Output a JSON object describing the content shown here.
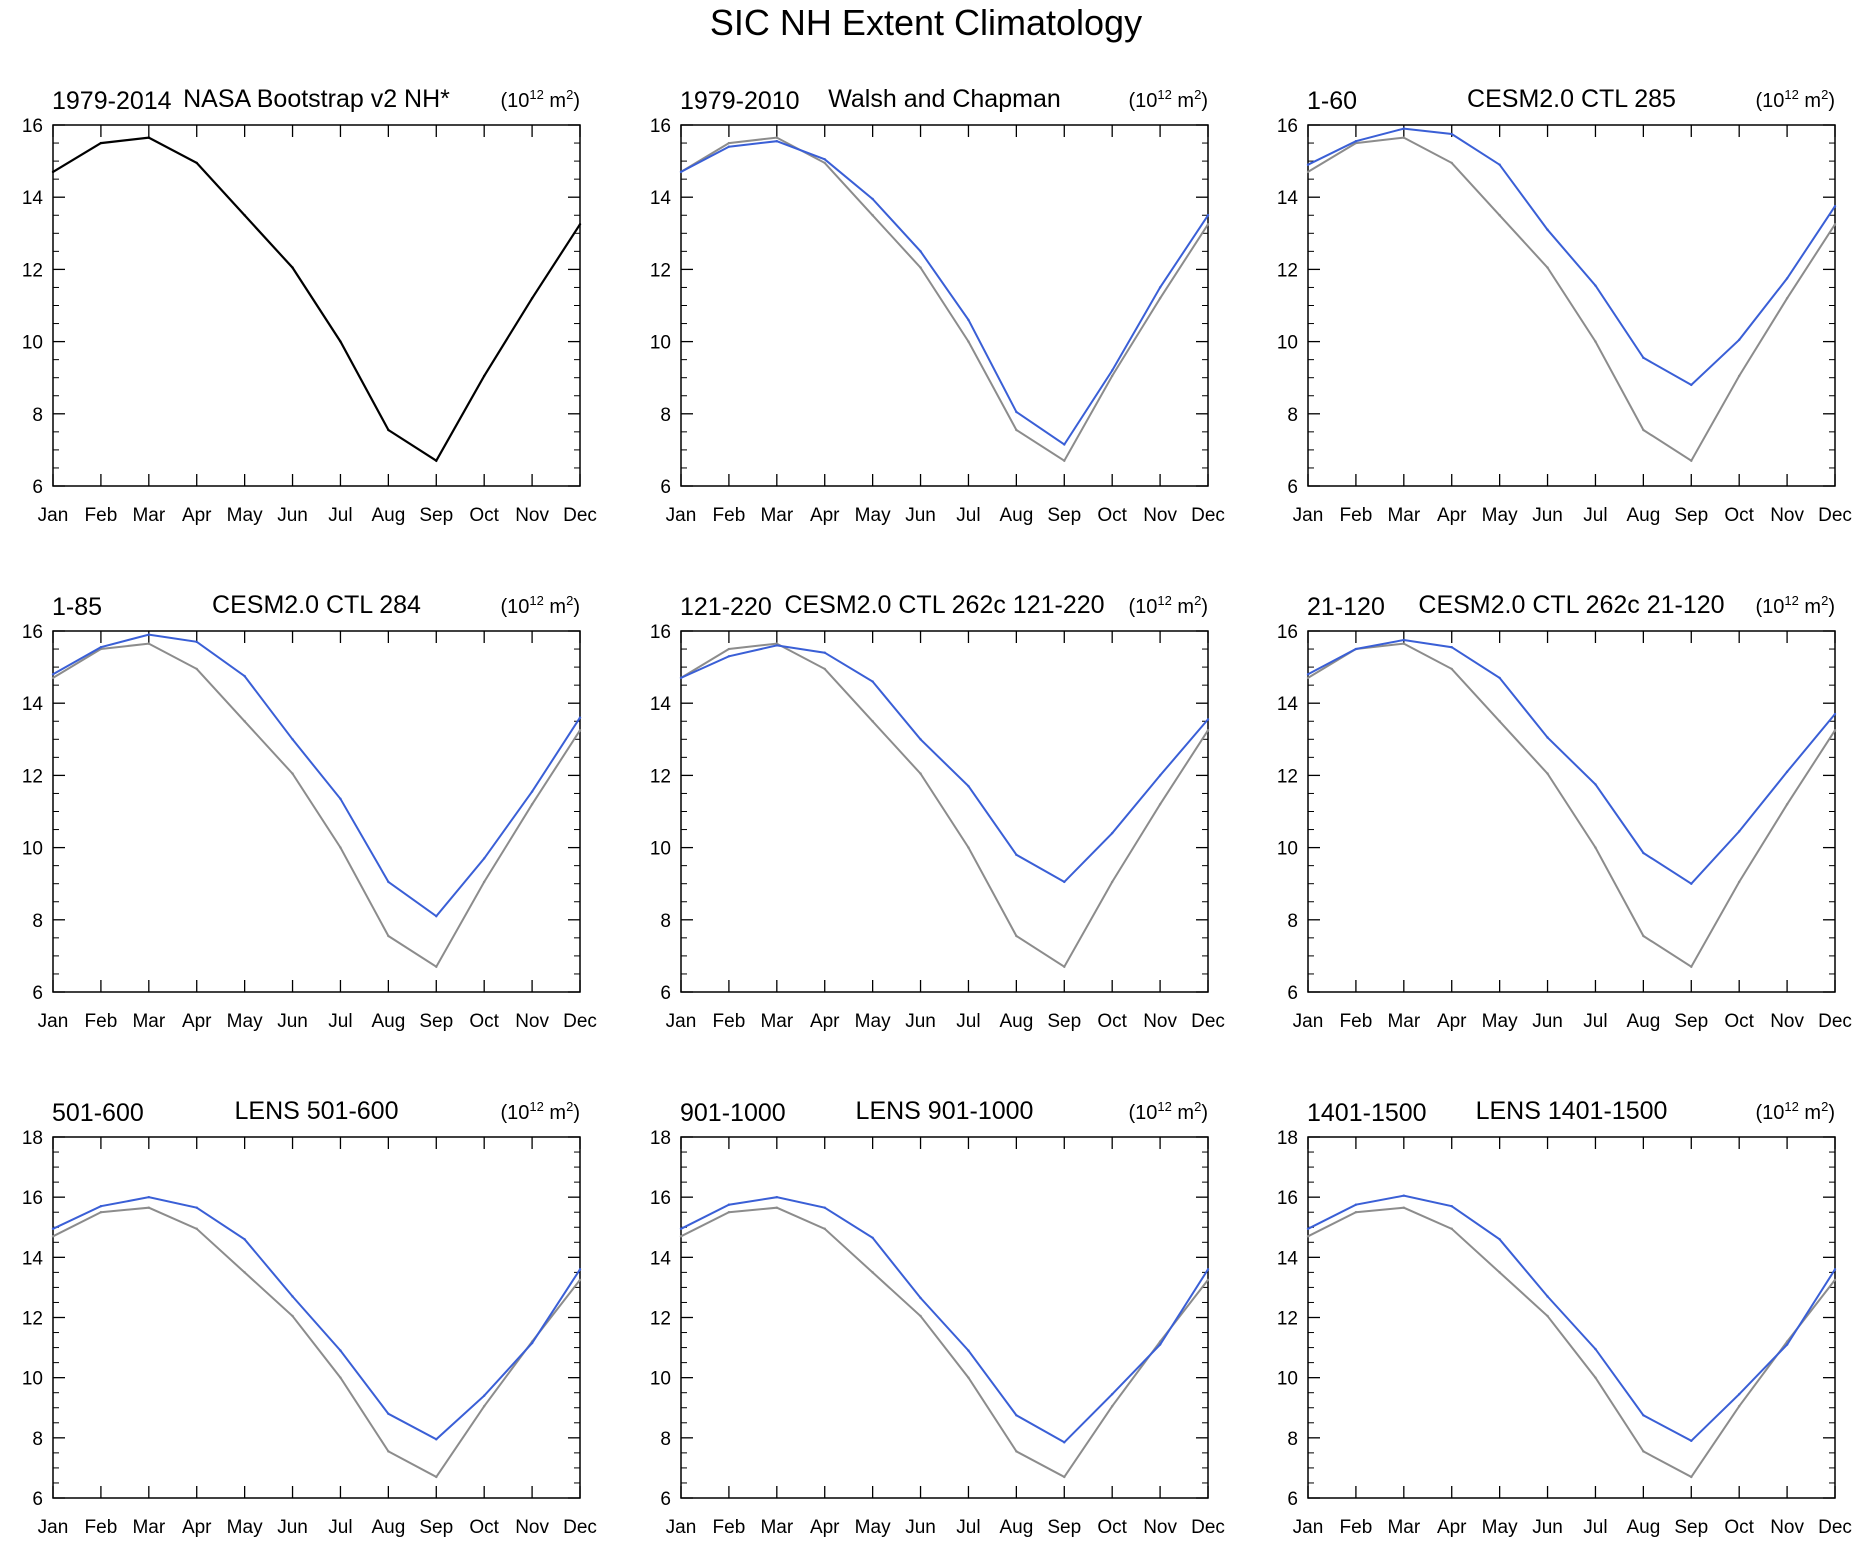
{
  "title": "SIC NH Extent Climatology",
  "colors": {
    "obs": "#000000",
    "reference": "#8c8c8c",
    "model": "#3a5fd6"
  },
  "unit_label": {
    "base": "(10",
    "exp": "12",
    "mid": " m",
    "sup2": "2",
    "end": ")"
  },
  "chart_data": [
    {
      "type": "line",
      "left_label": "1979-2014",
      "title": "NASA Bootstrap v2 NH*",
      "categories": [
        "Jan",
        "Feb",
        "Mar",
        "Apr",
        "May",
        "Jun",
        "Jul",
        "Aug",
        "Sep",
        "Oct",
        "Nov",
        "Dec"
      ],
      "ylim": [
        6,
        16
      ],
      "yticks": [
        6,
        8,
        10,
        12,
        14,
        16
      ],
      "series": [
        {
          "name": "NASA Bootstrap v2 NH*",
          "color": "obs",
          "values": [
            14.7,
            15.5,
            15.65,
            14.95,
            13.5,
            12.05,
            10.0,
            7.55,
            6.7,
            9.05,
            11.2,
            13.25
          ]
        }
      ]
    },
    {
      "type": "line",
      "left_label": "1979-2010",
      "title": "Walsh and Chapman",
      "categories": [
        "Jan",
        "Feb",
        "Mar",
        "Apr",
        "May",
        "Jun",
        "Jul",
        "Aug",
        "Sep",
        "Oct",
        "Nov",
        "Dec"
      ],
      "ylim": [
        6,
        16
      ],
      "yticks": [
        6,
        8,
        10,
        12,
        14,
        16
      ],
      "series": [
        {
          "name": "NASA Bootstrap v2 NH*",
          "color": "reference",
          "values": [
            14.7,
            15.5,
            15.65,
            14.95,
            13.5,
            12.05,
            10.0,
            7.55,
            6.7,
            9.05,
            11.2,
            13.25
          ]
        },
        {
          "name": "Walsh and Chapman",
          "color": "model",
          "values": [
            14.7,
            15.4,
            15.55,
            15.05,
            13.95,
            12.5,
            10.6,
            8.05,
            7.15,
            9.2,
            11.5,
            13.5
          ]
        }
      ]
    },
    {
      "type": "line",
      "left_label": "1-60",
      "title": "CESM2.0 CTL 285",
      "categories": [
        "Jan",
        "Feb",
        "Mar",
        "Apr",
        "May",
        "Jun",
        "Jul",
        "Aug",
        "Sep",
        "Oct",
        "Nov",
        "Dec"
      ],
      "ylim": [
        6,
        16
      ],
      "yticks": [
        6,
        8,
        10,
        12,
        14,
        16
      ],
      "series": [
        {
          "name": "NASA Bootstrap v2 NH*",
          "color": "reference",
          "values": [
            14.7,
            15.5,
            15.65,
            14.95,
            13.5,
            12.05,
            10.0,
            7.55,
            6.7,
            9.05,
            11.2,
            13.25
          ]
        },
        {
          "name": "CESM2.0 CTL 285",
          "color": "model",
          "values": [
            14.9,
            15.55,
            15.9,
            15.75,
            14.9,
            13.1,
            11.55,
            9.55,
            8.8,
            10.05,
            11.75,
            13.75
          ]
        }
      ]
    },
    {
      "type": "line",
      "left_label": "1-85",
      "title": "CESM2.0 CTL 284",
      "categories": [
        "Jan",
        "Feb",
        "Mar",
        "Apr",
        "May",
        "Jun",
        "Jul",
        "Aug",
        "Sep",
        "Oct",
        "Nov",
        "Dec"
      ],
      "ylim": [
        6,
        16
      ],
      "yticks": [
        6,
        8,
        10,
        12,
        14,
        16
      ],
      "series": [
        {
          "name": "NASA Bootstrap v2 NH*",
          "color": "reference",
          "values": [
            14.7,
            15.5,
            15.65,
            14.95,
            13.5,
            12.05,
            10.0,
            7.55,
            6.7,
            9.05,
            11.2,
            13.25
          ]
        },
        {
          "name": "CESM2.0 CTL 284",
          "color": "model",
          "values": [
            14.8,
            15.55,
            15.9,
            15.7,
            14.75,
            13.0,
            11.35,
            9.05,
            8.1,
            9.7,
            11.55,
            13.6
          ]
        }
      ]
    },
    {
      "type": "line",
      "left_label": "121-220",
      "title": "CESM2.0 CTL 262c 121-220",
      "categories": [
        "Jan",
        "Feb",
        "Mar",
        "Apr",
        "May",
        "Jun",
        "Jul",
        "Aug",
        "Sep",
        "Oct",
        "Nov",
        "Dec"
      ],
      "ylim": [
        6,
        16
      ],
      "yticks": [
        6,
        8,
        10,
        12,
        14,
        16
      ],
      "series": [
        {
          "name": "NASA Bootstrap v2 NH*",
          "color": "reference",
          "values": [
            14.7,
            15.5,
            15.65,
            14.95,
            13.5,
            12.05,
            10.0,
            7.55,
            6.7,
            9.05,
            11.2,
            13.25
          ]
        },
        {
          "name": "CESM2.0 CTL 262c 121-220",
          "color": "model",
          "values": [
            14.7,
            15.3,
            15.6,
            15.4,
            14.6,
            13.0,
            11.7,
            9.8,
            9.05,
            10.4,
            12.0,
            13.55
          ]
        }
      ]
    },
    {
      "type": "line",
      "left_label": "21-120",
      "title": "CESM2.0 CTL 262c 21-120",
      "categories": [
        "Jan",
        "Feb",
        "Mar",
        "Apr",
        "May",
        "Jun",
        "Jul",
        "Aug",
        "Sep",
        "Oct",
        "Nov",
        "Dec"
      ],
      "ylim": [
        6,
        16
      ],
      "yticks": [
        6,
        8,
        10,
        12,
        14,
        16
      ],
      "series": [
        {
          "name": "NASA Bootstrap v2 NH*",
          "color": "reference",
          "values": [
            14.7,
            15.5,
            15.65,
            14.95,
            13.5,
            12.05,
            10.0,
            7.55,
            6.7,
            9.05,
            11.2,
            13.25
          ]
        },
        {
          "name": "CESM2.0 CTL 262c 21-120",
          "color": "model",
          "values": [
            14.8,
            15.5,
            15.75,
            15.55,
            14.7,
            13.05,
            11.75,
            9.85,
            9.0,
            10.45,
            12.1,
            13.7
          ]
        }
      ]
    },
    {
      "type": "line",
      "left_label": "501-600",
      "title": "LENS 501-600",
      "categories": [
        "Jan",
        "Feb",
        "Mar",
        "Apr",
        "May",
        "Jun",
        "Jul",
        "Aug",
        "Sep",
        "Oct",
        "Nov",
        "Dec"
      ],
      "ylim": [
        6,
        18
      ],
      "yticks": [
        6,
        8,
        10,
        12,
        14,
        16,
        18
      ],
      "series": [
        {
          "name": "NASA Bootstrap v2 NH*",
          "color": "reference",
          "values": [
            14.7,
            15.5,
            15.65,
            14.95,
            13.5,
            12.05,
            10.0,
            7.55,
            6.7,
            9.05,
            11.2,
            13.25
          ]
        },
        {
          "name": "LENS 501-600",
          "color": "model",
          "values": [
            14.95,
            15.7,
            16.0,
            15.65,
            14.6,
            12.7,
            10.9,
            8.8,
            7.95,
            9.4,
            11.15,
            13.6
          ]
        }
      ]
    },
    {
      "type": "line",
      "left_label": "901-1000",
      "title": "LENS 901-1000",
      "categories": [
        "Jan",
        "Feb",
        "Mar",
        "Apr",
        "May",
        "Jun",
        "Jul",
        "Aug",
        "Sep",
        "Oct",
        "Nov",
        "Dec"
      ],
      "ylim": [
        6,
        18
      ],
      "yticks": [
        6,
        8,
        10,
        12,
        14,
        16,
        18
      ],
      "series": [
        {
          "name": "NASA Bootstrap v2 NH*",
          "color": "reference",
          "values": [
            14.7,
            15.5,
            15.65,
            14.95,
            13.5,
            12.05,
            10.0,
            7.55,
            6.7,
            9.05,
            11.2,
            13.25
          ]
        },
        {
          "name": "LENS 901-1000",
          "color": "model",
          "values": [
            14.95,
            15.75,
            16.0,
            15.65,
            14.65,
            12.65,
            10.9,
            8.75,
            7.85,
            9.45,
            11.1,
            13.6
          ]
        }
      ]
    },
    {
      "type": "line",
      "left_label": "1401-1500",
      "title": "LENS 1401-1500",
      "categories": [
        "Jan",
        "Feb",
        "Mar",
        "Apr",
        "May",
        "Jun",
        "Jul",
        "Aug",
        "Sep",
        "Oct",
        "Nov",
        "Dec"
      ],
      "ylim": [
        6,
        18
      ],
      "yticks": [
        6,
        8,
        10,
        12,
        14,
        16,
        18
      ],
      "series": [
        {
          "name": "NASA Bootstrap v2 NH*",
          "color": "reference",
          "values": [
            14.7,
            15.5,
            15.65,
            14.95,
            13.5,
            12.05,
            10.0,
            7.55,
            6.7,
            9.05,
            11.2,
            13.25
          ]
        },
        {
          "name": "LENS 1401-1500",
          "color": "model",
          "values": [
            14.95,
            15.75,
            16.05,
            15.7,
            14.6,
            12.7,
            10.95,
            8.75,
            7.9,
            9.45,
            11.1,
            13.6
          ]
        }
      ]
    }
  ]
}
